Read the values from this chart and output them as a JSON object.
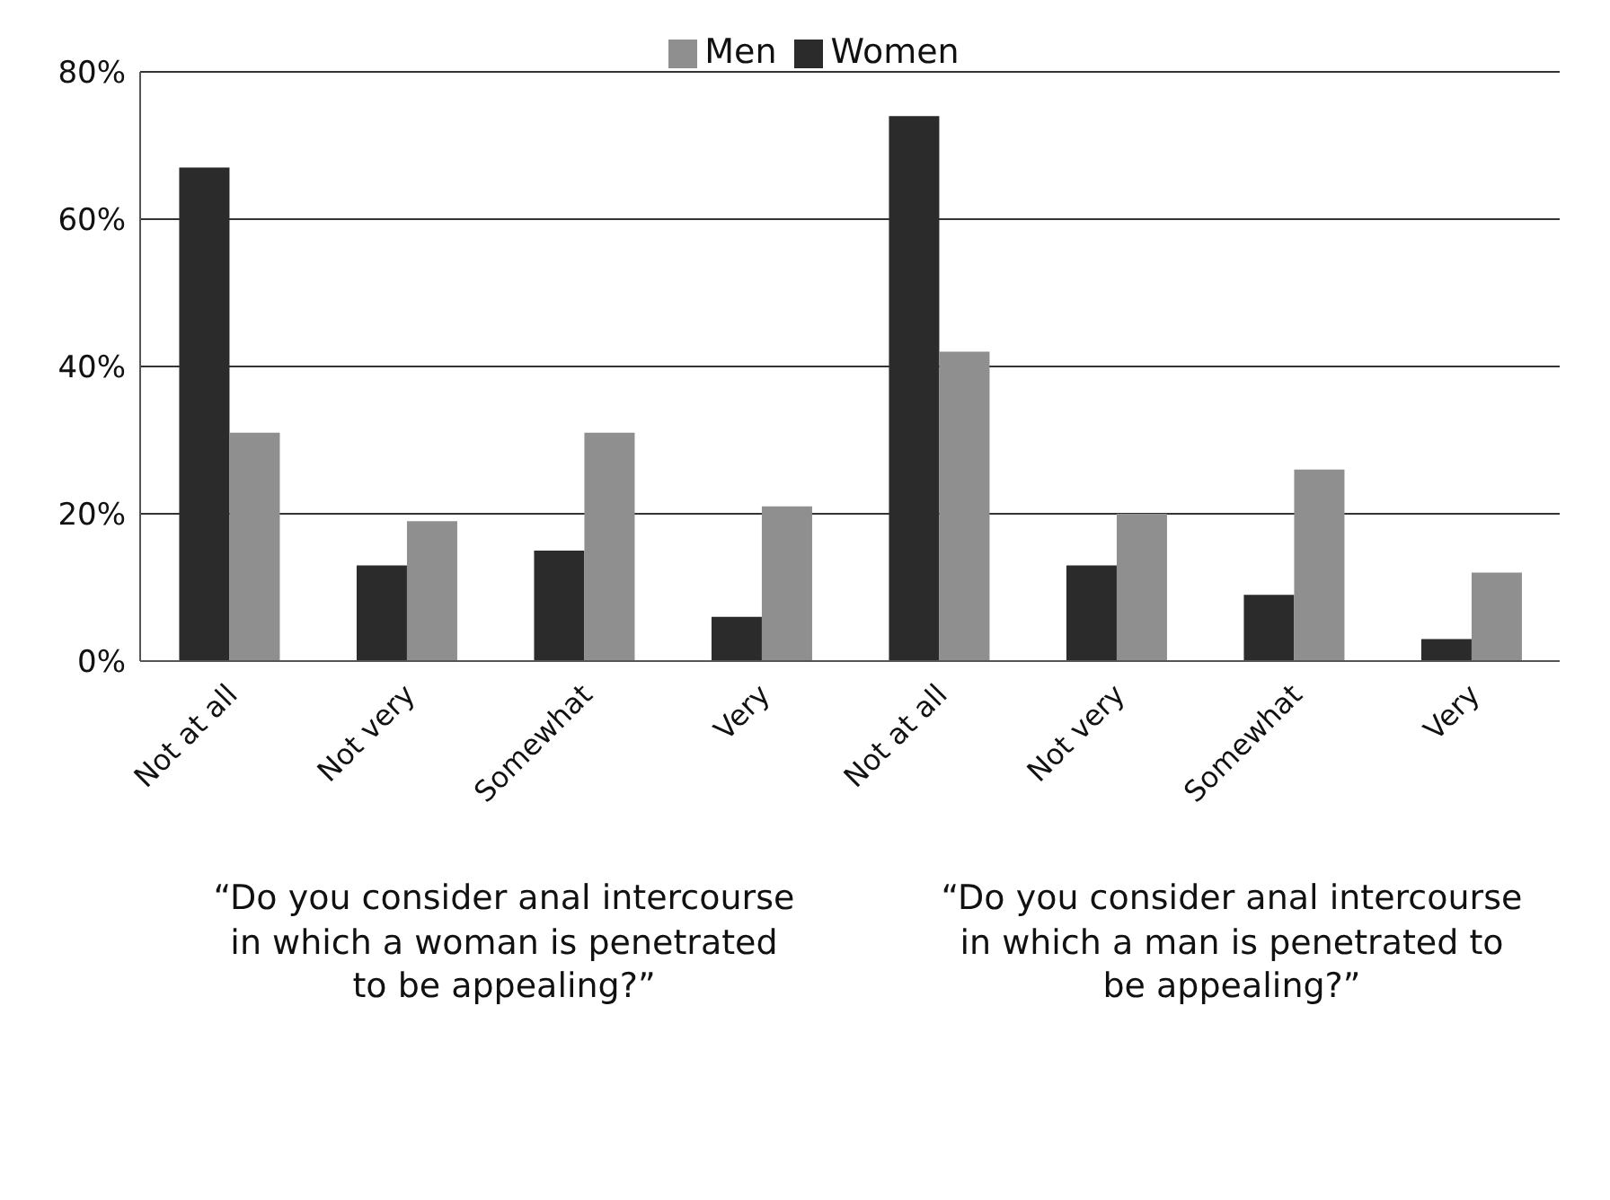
{
  "chart_data": {
    "type": "bar",
    "categories": [
      "Not at all",
      "Not very",
      "Somewhat",
      "Very",
      "Not at all",
      "Not very",
      "Somewhat",
      "Very"
    ],
    "series": [
      {
        "name": "Women",
        "color": "#2b2b2b",
        "values": [
          67,
          13,
          15,
          6,
          74,
          13,
          9,
          3
        ]
      },
      {
        "name": "Men",
        "color": "#8f8f8f",
        "values": [
          31,
          19,
          31,
          21,
          42,
          20,
          26,
          12
        ]
      }
    ],
    "ylim": [
      0,
      80
    ],
    "yticks": [
      {
        "value": 0,
        "label": "0%"
      },
      {
        "value": 20,
        "label": "20%"
      },
      {
        "value": 40,
        "label": "40%"
      },
      {
        "value": 60,
        "label": "60%"
      },
      {
        "value": 80,
        "label": "80%"
      }
    ],
    "grid": "y",
    "legend": "top",
    "annotations": [
      "“Do you consider anal intercourse in which a woman is penetrated to be appealing?”",
      "“Do you consider anal intercourse in which a man is penetrated to be appealing?”"
    ]
  }
}
